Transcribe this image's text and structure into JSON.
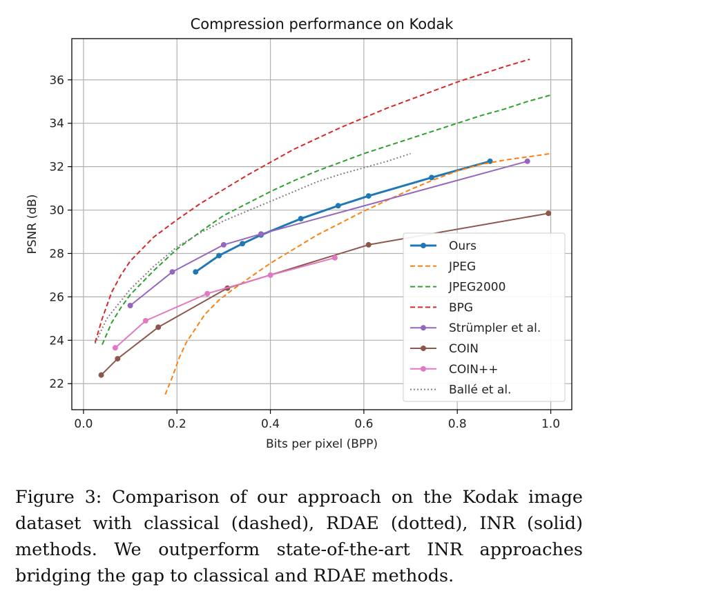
{
  "chart_data": {
    "type": "line",
    "title": "Compression performance on Kodak",
    "xlabel": "Bits per pixel (BPP)",
    "ylabel": "PSNR (dB)",
    "xlim": [
      -0.025,
      1.045
    ],
    "ylim": [
      20.8,
      37.9
    ],
    "xticks": [
      0.0,
      0.2,
      0.4,
      0.6,
      0.8,
      1.0
    ],
    "xtick_labels": [
      "0.0",
      "0.2",
      "0.4",
      "0.6",
      "0.8",
      "1.0"
    ],
    "yticks": [
      22,
      24,
      26,
      28,
      30,
      32,
      34,
      36
    ],
    "ytick_labels": [
      "22",
      "24",
      "26",
      "28",
      "30",
      "32",
      "34",
      "36"
    ],
    "grid": true,
    "legend_position": "lower-right",
    "series": [
      {
        "name": "Ours",
        "style": "solid",
        "markers": true,
        "width": 3,
        "color": "#1f77b4",
        "points": [
          [
            0.24,
            27.15
          ],
          [
            0.29,
            27.9
          ],
          [
            0.34,
            28.45
          ],
          [
            0.38,
            28.85
          ],
          [
            0.465,
            29.6
          ],
          [
            0.545,
            30.2
          ],
          [
            0.61,
            30.65
          ],
          [
            0.745,
            31.5
          ],
          [
            0.87,
            32.25
          ]
        ]
      },
      {
        "name": "JPEG",
        "style": "dashed",
        "markers": false,
        "width": 2,
        "color": "#ff7f0e",
        "points": [
          [
            0.175,
            21.5
          ],
          [
            0.19,
            22.3
          ],
          [
            0.205,
            23.2
          ],
          [
            0.22,
            23.9
          ],
          [
            0.24,
            24.55
          ],
          [
            0.26,
            25.2
          ],
          [
            0.29,
            25.85
          ],
          [
            0.32,
            26.35
          ],
          [
            0.36,
            26.95
          ],
          [
            0.4,
            27.55
          ],
          [
            0.45,
            28.2
          ],
          [
            0.5,
            28.85
          ],
          [
            0.55,
            29.4
          ],
          [
            0.6,
            29.95
          ],
          [
            0.65,
            30.45
          ],
          [
            0.7,
            30.95
          ],
          [
            0.75,
            31.4
          ],
          [
            0.8,
            31.8
          ],
          [
            0.85,
            32.1
          ],
          [
            0.9,
            32.3
          ],
          [
            0.95,
            32.45
          ],
          [
            1.0,
            32.6
          ]
        ]
      },
      {
        "name": "JPEG2000",
        "style": "dashed",
        "markers": false,
        "width": 2,
        "color": "#2ca02c",
        "points": [
          [
            0.04,
            23.8
          ],
          [
            0.06,
            24.8
          ],
          [
            0.08,
            25.5
          ],
          [
            0.1,
            26.1
          ],
          [
            0.15,
            27.2
          ],
          [
            0.2,
            28.2
          ],
          [
            0.25,
            29.0
          ],
          [
            0.3,
            29.75
          ],
          [
            0.35,
            30.3
          ],
          [
            0.4,
            30.85
          ],
          [
            0.45,
            31.35
          ],
          [
            0.5,
            31.8
          ],
          [
            0.55,
            32.2
          ],
          [
            0.6,
            32.6
          ],
          [
            0.65,
            32.95
          ],
          [
            0.7,
            33.3
          ],
          [
            0.75,
            33.65
          ],
          [
            0.8,
            34.0
          ],
          [
            0.85,
            34.35
          ],
          [
            0.9,
            34.65
          ],
          [
            0.95,
            35.0
          ],
          [
            1.0,
            35.3
          ]
        ]
      },
      {
        "name": "BPG",
        "style": "dashed",
        "markers": false,
        "width": 2,
        "color": "#d62728",
        "points": [
          [
            0.025,
            23.9
          ],
          [
            0.04,
            25.0
          ],
          [
            0.06,
            26.2
          ],
          [
            0.08,
            27.0
          ],
          [
            0.1,
            27.65
          ],
          [
            0.15,
            28.75
          ],
          [
            0.2,
            29.55
          ],
          [
            0.25,
            30.3
          ],
          [
            0.3,
            30.95
          ],
          [
            0.35,
            31.6
          ],
          [
            0.4,
            32.2
          ],
          [
            0.45,
            32.8
          ],
          [
            0.5,
            33.3
          ],
          [
            0.55,
            33.8
          ],
          [
            0.6,
            34.25
          ],
          [
            0.65,
            34.7
          ],
          [
            0.7,
            35.1
          ],
          [
            0.75,
            35.5
          ],
          [
            0.8,
            35.9
          ],
          [
            0.85,
            36.25
          ],
          [
            0.9,
            36.6
          ],
          [
            0.955,
            36.95
          ]
        ]
      },
      {
        "name": "Strümpler et al.",
        "style": "solid",
        "markers": true,
        "width": 2,
        "color": "#9467bd",
        "points": [
          [
            0.1,
            25.6
          ],
          [
            0.19,
            27.15
          ],
          [
            0.3,
            28.4
          ],
          [
            0.38,
            28.9
          ],
          [
            0.95,
            32.25
          ]
        ]
      },
      {
        "name": "COIN",
        "style": "solid",
        "markers": true,
        "width": 2,
        "color": "#8c564b",
        "points": [
          [
            0.038,
            22.4
          ],
          [
            0.073,
            23.15
          ],
          [
            0.16,
            24.6
          ],
          [
            0.308,
            26.4
          ],
          [
            0.61,
            28.4
          ],
          [
            0.995,
            29.85
          ]
        ]
      },
      {
        "name": "COIN++",
        "style": "solid",
        "markers": true,
        "width": 2,
        "color": "#e377c2",
        "points": [
          [
            0.068,
            23.65
          ],
          [
            0.133,
            24.9
          ],
          [
            0.265,
            26.15
          ],
          [
            0.4,
            27.0
          ],
          [
            0.538,
            27.8
          ]
        ]
      },
      {
        "name": "Ballé et al.",
        "style": "dotted",
        "markers": false,
        "width": 2,
        "color": "#7f7f7f",
        "points": [
          [
            0.025,
            23.85
          ],
          [
            0.05,
            25.0
          ],
          [
            0.1,
            26.35
          ],
          [
            0.15,
            27.4
          ],
          [
            0.2,
            28.3
          ],
          [
            0.25,
            28.95
          ],
          [
            0.3,
            29.5
          ],
          [
            0.35,
            29.95
          ],
          [
            0.4,
            30.4
          ],
          [
            0.45,
            30.85
          ],
          [
            0.5,
            31.3
          ],
          [
            0.55,
            31.65
          ],
          [
            0.6,
            31.95
          ],
          [
            0.65,
            32.25
          ],
          [
            0.7,
            32.6
          ]
        ]
      }
    ]
  },
  "caption": "Figure 3: Comparison of our approach on the Kodak image dataset with classical (dashed), RDAE (dotted), INR (solid) methods. We outperform state-of-the-art INR approaches bridging the gap to classical and RDAE methods."
}
